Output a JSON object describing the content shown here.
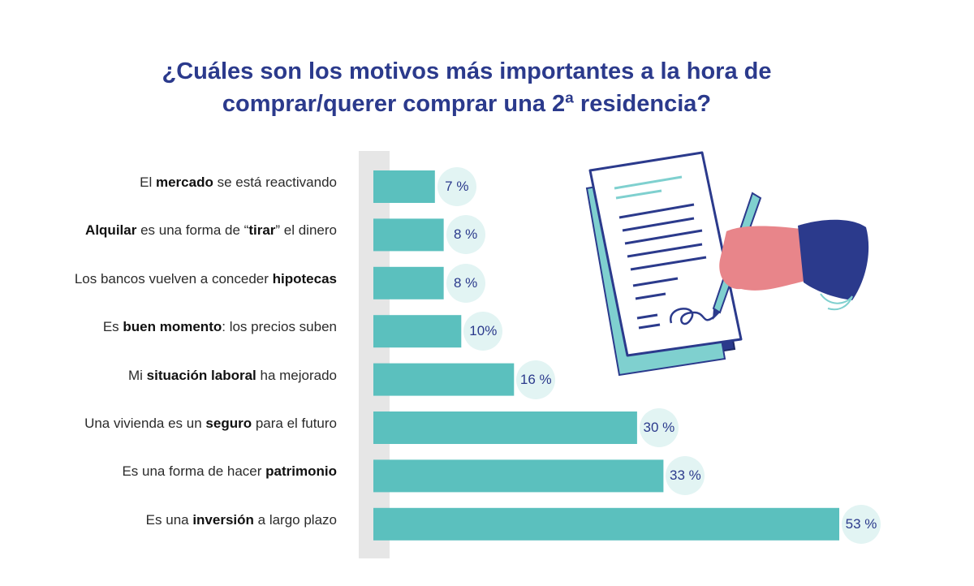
{
  "title": {
    "line1": "¿Cuáles son los motivos más importantes a la hora de",
    "line2": "comprar/querer comprar una 2ª residencia?"
  },
  "colors": {
    "title": "#2b3a8c",
    "bar": "#5bc0be",
    "axis_band": "#e6e6e6",
    "badge": "#e2f4f3",
    "badge_text": "#2b3a8c"
  },
  "chart_data": {
    "type": "bar",
    "orientation": "horizontal",
    "unit": "%",
    "categories": [
      "El mercado se está reactivando",
      "Alquilar es una forma de “tirar” el dinero",
      "Los bancos vuelven a conceder hipotecas",
      "Es buen momento: los precios suben",
      "Mi situación laboral ha mejorado",
      "Una vivienda es un seguro para el futuro",
      "Es una forma de hacer patrimonio",
      "Es una inversión a largo plazo"
    ],
    "label_parts": [
      [
        {
          "t": "El ",
          "b": false
        },
        {
          "t": "mercado",
          "b": true
        },
        {
          "t": " se está reactivando",
          "b": false
        }
      ],
      [
        {
          "t": "Alquilar",
          "b": true
        },
        {
          "t": " es una forma de “",
          "b": false
        },
        {
          "t": "tirar",
          "b": true
        },
        {
          "t": "” el dinero",
          "b": false
        }
      ],
      [
        {
          "t": "Los bancos vuelven a conceder ",
          "b": false
        },
        {
          "t": "hipotecas",
          "b": true
        }
      ],
      [
        {
          "t": "Es ",
          "b": false
        },
        {
          "t": "buen momento",
          "b": true
        },
        {
          "t": ": los precios suben",
          "b": false
        }
      ],
      [
        {
          "t": "Mi ",
          "b": false
        },
        {
          "t": "situación laboral",
          "b": true
        },
        {
          "t": " ha mejorado",
          "b": false
        }
      ],
      [
        {
          "t": "Una vivienda es un ",
          "b": false
        },
        {
          "t": "seguro",
          "b": true
        },
        {
          "t": " para el futuro",
          "b": false
        }
      ],
      [
        {
          "t": "Es una forma de hacer ",
          "b": false
        },
        {
          "t": "patrimonio",
          "b": true
        }
      ],
      [
        {
          "t": "Es una ",
          "b": false
        },
        {
          "t": "inversión",
          "b": true
        },
        {
          "t": " a largo plazo",
          "b": false
        }
      ]
    ],
    "values": [
      7,
      8,
      8,
      10,
      16,
      30,
      33,
      53
    ],
    "value_labels": [
      "7 %",
      "8 %",
      "8 %",
      "10%",
      "16 %",
      "30 %",
      "33 %",
      "53 %"
    ],
    "xlim": [
      0,
      53
    ],
    "legend": "none",
    "grid": false
  }
}
